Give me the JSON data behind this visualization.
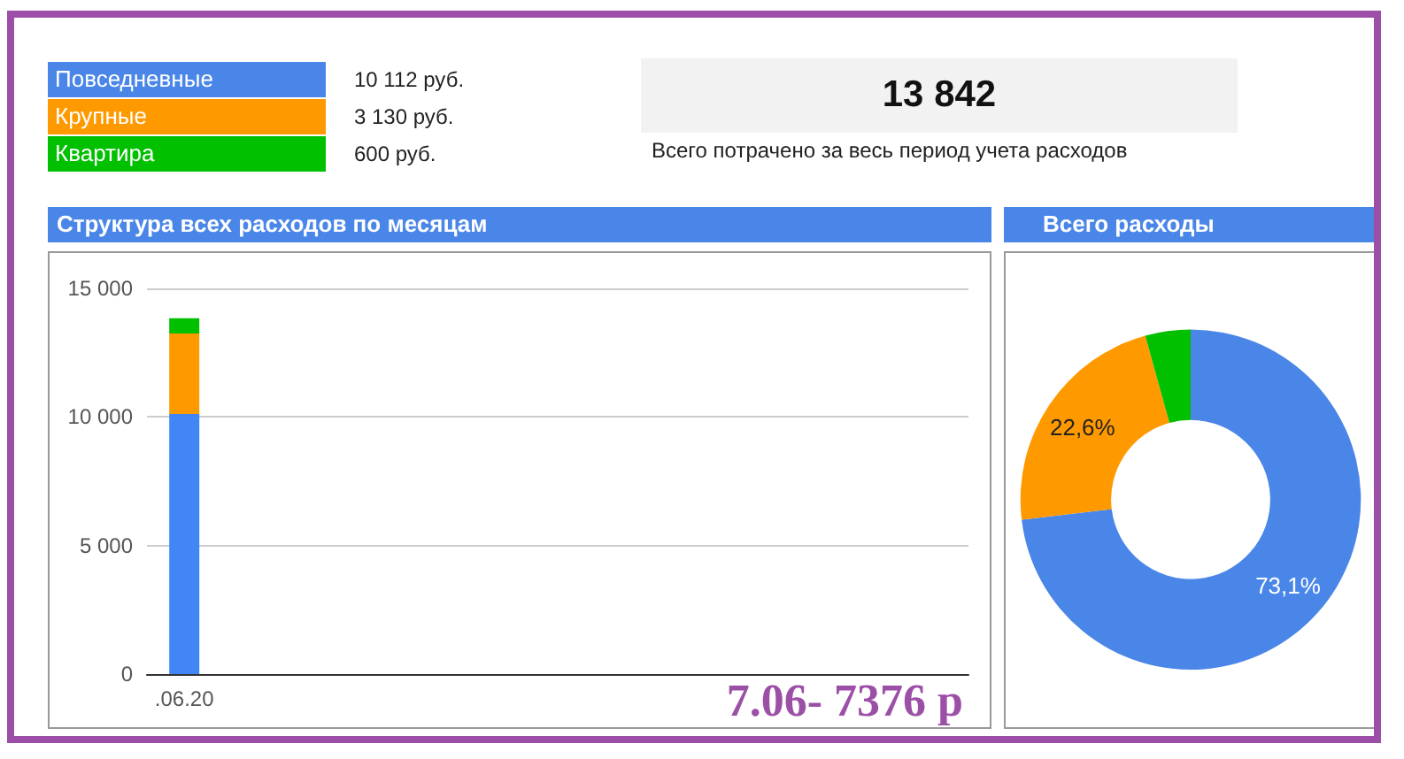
{
  "chart_data": [
    {
      "type": "other",
      "categories": [
        "Повседневные",
        "Крупные",
        "Квартира"
      ],
      "colors": [
        "#4a86e8",
        "#ff9900",
        "#00c000"
      ],
      "value_labels": [
        "10 112 руб.",
        "3 130 руб.",
        "600 руб."
      ],
      "annotations": [
        "13 842",
        "Всего потрачено за весь период учета расходов"
      ]
    },
    {
      "type": "bar",
      "title": "Структура всех расходов по месяцам",
      "stacked": true,
      "categories": [
        ".06.20",
        null,
        null,
        null,
        null,
        null,
        null,
        null,
        null,
        null,
        null
      ],
      "series": [
        {
          "color": "#4285f4",
          "values": [
            10112,
            null,
            null,
            null,
            null,
            null,
            null,
            null,
            null,
            null,
            null
          ]
        },
        {
          "color": "#ff9900",
          "values": [
            3130,
            null,
            null,
            null,
            null,
            null,
            null,
            null,
            null,
            null,
            null
          ]
        },
        {
          "color": "#00c000",
          "values": [
            600,
            null,
            null,
            null,
            null,
            null,
            null,
            null,
            null,
            null,
            null
          ]
        }
      ],
      "ylim": [
        0,
        15000
      ],
      "yticks": [
        {
          "value": 0,
          "label": "0"
        },
        {
          "value": 5000,
          "label": "5 000"
        },
        {
          "value": 10000,
          "label": "10 000"
        },
        {
          "value": 15000,
          "label": "15 000"
        }
      ],
      "grid": "y",
      "annotations": [
        "7.06- 7376 р"
      ]
    },
    {
      "type": "donut",
      "title": "Всего расходы",
      "categories": [
        null,
        null,
        null
      ],
      "values": [
        73.1,
        22.6,
        4.3
      ],
      "colors": [
        "#4a86e8",
        "#ff9900",
        "#00c000"
      ],
      "value_labels": [
        "73,1%",
        "22,6%",
        null
      ]
    }
  ]
}
